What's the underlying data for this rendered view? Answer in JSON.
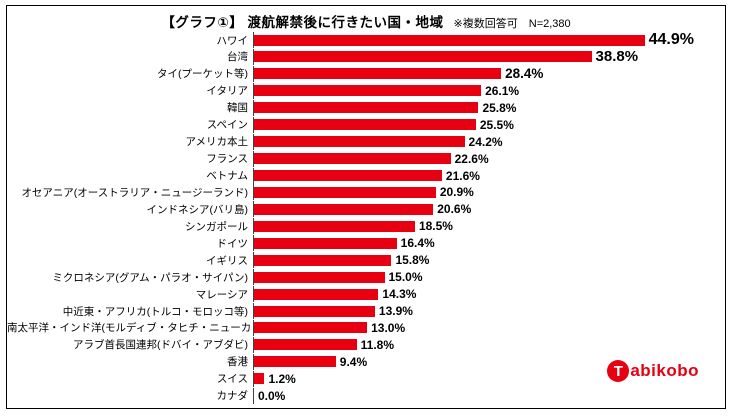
{
  "header": {
    "title": "【グラフ①】 渡航解禁後に行きたい国・地域",
    "note": "※複数回答可　N=2,380"
  },
  "logo": {
    "circle_letter": "T",
    "text": "abikobo"
  },
  "chart_data": {
    "type": "bar",
    "orientation": "horizontal",
    "title": "【グラフ①】 渡航解禁後に行きたい国・地域",
    "subtitle": "※複数回答可 N=2,380",
    "bar_color": "#e60012",
    "xlim": [
      0,
      50
    ],
    "grid": false,
    "legend": "none",
    "categories": [
      "ハワイ",
      "台湾",
      "タイ(プーケット等)",
      "イタリア",
      "韓国",
      "スペイン",
      "アメリカ本土",
      "フランス",
      "ベトナム",
      "オセアニア(オーストラリア・ニュージーランド)",
      "インドネシア(バリ島)",
      "シンガポール",
      "ドイツ",
      "イギリス",
      "ミクロネシア(グアム・パラオ・サイパン)",
      "マレーシア",
      "中近東・アフリカ(トルコ・モロッコ等)",
      "南太平洋・インド洋(モルディブ・タヒチ・ニューカレドニア)",
      "アラブ首長国連邦(ドバイ・アブダビ)",
      "香港",
      "スイス",
      "カナダ"
    ],
    "values": [
      44.9,
      38.8,
      28.4,
      26.1,
      25.8,
      25.5,
      24.2,
      22.6,
      21.6,
      20.9,
      20.6,
      18.5,
      16.4,
      15.8,
      15.0,
      14.3,
      13.9,
      13.0,
      11.8,
      9.4,
      1.2,
      0.0
    ],
    "value_labels": [
      "44.9%",
      "38.8%",
      "28.4%",
      "26.1%",
      "25.8%",
      "25.5%",
      "24.2%",
      "22.6%",
      "21.6%",
      "20.9%",
      "20.6%",
      "18.5%",
      "16.4%",
      "15.8%",
      "15.0%",
      "14.3%",
      "13.9%",
      "13.0%",
      "11.8%",
      "9.4%",
      "1.2%",
      "0.0%"
    ]
  }
}
